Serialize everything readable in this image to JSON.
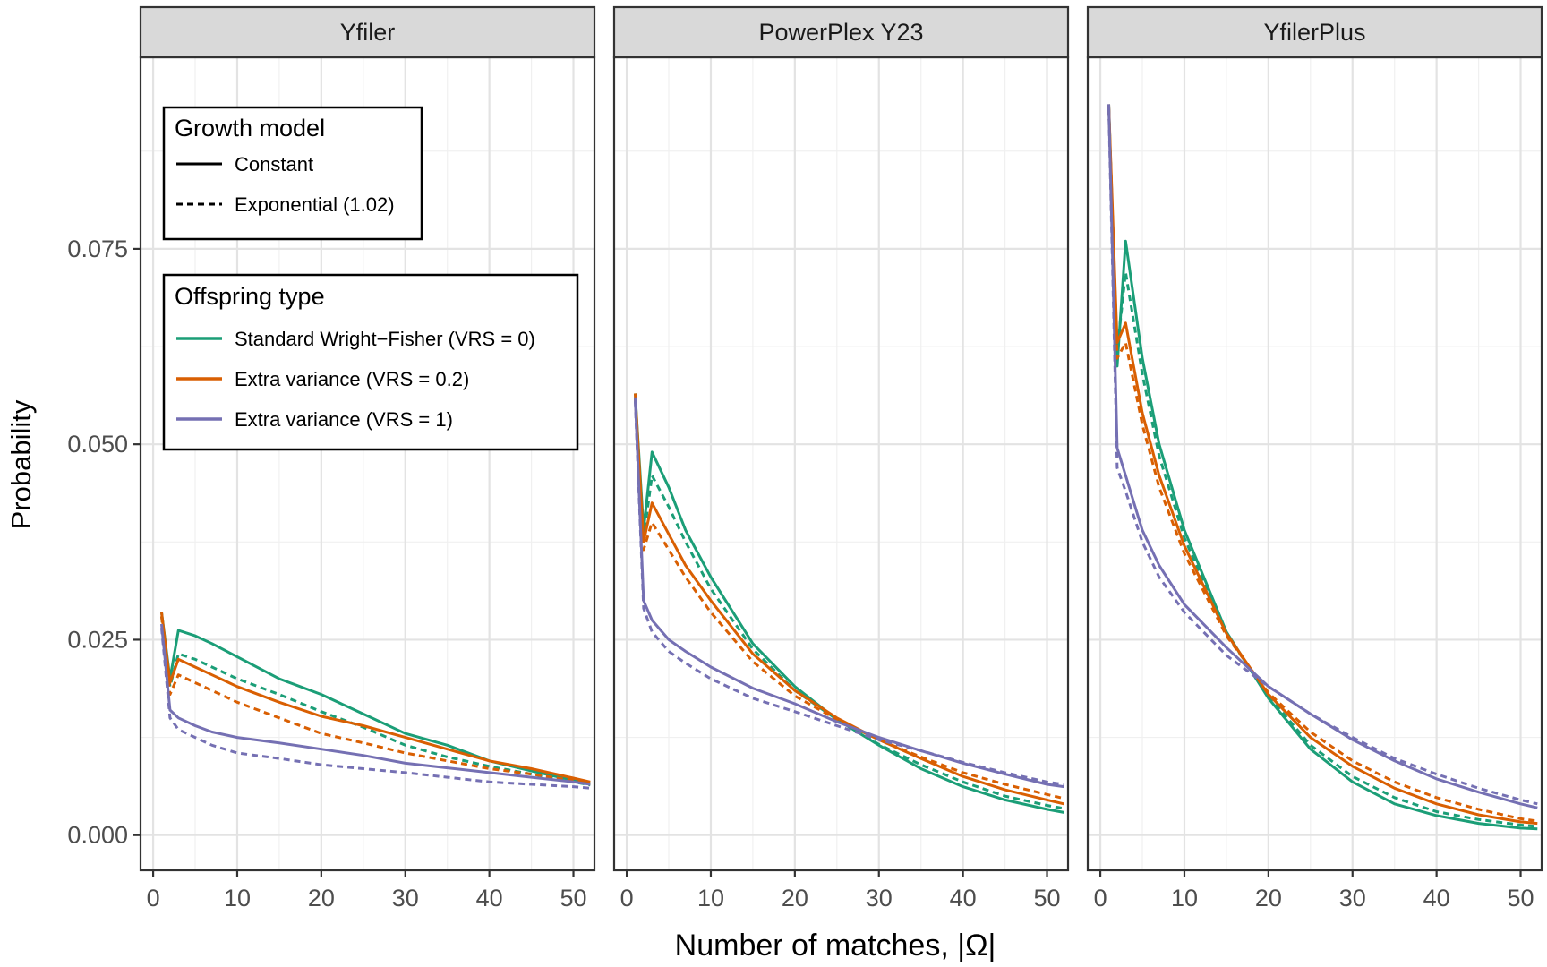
{
  "chart_data": {
    "type": "line",
    "ylabel": "Probability",
    "xlabel": "Number of matches, |Ω|",
    "xlim": [
      -1.5,
      52.5
    ],
    "ylim": [
      -0.0045,
      0.0995
    ],
    "x_ticks": [
      0,
      10,
      20,
      30,
      40,
      50
    ],
    "y_ticks": [
      0.0,
      0.025,
      0.05,
      0.075
    ],
    "y_tick_labels": [
      "0.000",
      "0.025",
      "0.050",
      "0.075"
    ],
    "grid": true,
    "x": [
      1,
      2,
      3,
      5,
      7,
      10,
      15,
      20,
      25,
      30,
      35,
      40,
      45,
      50,
      52
    ],
    "legend": {
      "placement": "top-left inside first panel",
      "growth_model": {
        "title": "Growth model",
        "entries": [
          {
            "label": "Constant",
            "linestyle": "solid"
          },
          {
            "label": "Exponential (1.02)",
            "linestyle": "dashed"
          }
        ]
      },
      "offspring_type": {
        "title": "Offspring type",
        "entries": [
          {
            "label": "Standard Wright−Fisher (VRS = 0)",
            "color": "#1b9e77"
          },
          {
            "label": "Extra variance (VRS = 0.2)",
            "color": "#d95f02"
          },
          {
            "label": "Extra variance (VRS = 1)",
            "color": "#7570b3"
          }
        ]
      }
    },
    "panels": [
      {
        "title": "Yfiler",
        "series": [
          {
            "offspring": "Standard Wright−Fisher (VRS = 0)",
            "growth": "Constant",
            "color": "#1b9e77",
            "dash": false,
            "values": [
              0.0285,
              0.02,
              0.0262,
              0.0255,
              0.0245,
              0.0228,
              0.02,
              0.018,
              0.0155,
              0.013,
              0.0115,
              0.0095,
              0.0082,
              0.007,
              0.0066
            ]
          },
          {
            "offspring": "Standard Wright−Fisher (VRS = 0)",
            "growth": "Exponential (1.02)",
            "color": "#1b9e77",
            "dash": true,
            "values": [
              0.028,
              0.019,
              0.0232,
              0.0225,
              0.0215,
              0.02,
              0.018,
              0.0158,
              0.0138,
              0.0115,
              0.01,
              0.0088,
              0.0078,
              0.0068,
              0.0064
            ]
          },
          {
            "offspring": "Extra variance (VRS = 0.2)",
            "growth": "Constant",
            "color": "#d95f02",
            "dash": false,
            "values": [
              0.0285,
              0.0195,
              0.0225,
              0.0215,
              0.0205,
              0.019,
              0.017,
              0.0152,
              0.014,
              0.0125,
              0.011,
              0.0095,
              0.0085,
              0.0073,
              0.0068
            ]
          },
          {
            "offspring": "Extra variance (VRS = 0.2)",
            "growth": "Exponential (1.02)",
            "color": "#d95f02",
            "dash": true,
            "values": [
              0.028,
              0.018,
              0.0205,
              0.0195,
              0.0185,
              0.017,
              0.015,
              0.013,
              0.0118,
              0.0105,
              0.0095,
              0.0085,
              0.0078,
              0.007,
              0.0065
            ]
          },
          {
            "offspring": "Extra variance (VRS = 1)",
            "growth": "Constant",
            "color": "#7570b3",
            "dash": false,
            "values": [
              0.027,
              0.016,
              0.015,
              0.014,
              0.0132,
              0.0125,
              0.0118,
              0.011,
              0.0102,
              0.0092,
              0.0086,
              0.008,
              0.0074,
              0.0068,
              0.0065
            ]
          },
          {
            "offspring": "Extra variance (VRS = 1)",
            "growth": "Exponential (1.02)",
            "color": "#7570b3",
            "dash": true,
            "values": [
              0.0265,
              0.015,
              0.0135,
              0.0125,
              0.0115,
              0.0105,
              0.0098,
              0.009,
              0.0085,
              0.008,
              0.0074,
              0.0068,
              0.0065,
              0.0062,
              0.006
            ]
          }
        ]
      },
      {
        "title": "PowerPlex Y23",
        "series": [
          {
            "offspring": "Standard Wright−Fisher (VRS = 0)",
            "growth": "Constant",
            "color": "#1b9e77",
            "dash": false,
            "values": [
              0.0565,
              0.039,
              0.049,
              0.0445,
              0.039,
              0.033,
              0.0245,
              0.019,
              0.0148,
              0.0115,
              0.0085,
              0.0062,
              0.0045,
              0.0033,
              0.0029
            ]
          },
          {
            "offspring": "Standard Wright−Fisher (VRS = 0)",
            "growth": "Exponential (1.02)",
            "color": "#1b9e77",
            "dash": true,
            "values": [
              0.056,
              0.038,
              0.046,
              0.042,
              0.0375,
              0.0315,
              0.0238,
              0.0185,
              0.0148,
              0.0116,
              0.009,
              0.0068,
              0.005,
              0.0038,
              0.0034
            ]
          },
          {
            "offspring": "Extra variance (VRS = 0.2)",
            "growth": "Constant",
            "color": "#d95f02",
            "dash": false,
            "values": [
              0.0565,
              0.0375,
              0.0425,
              0.0385,
              0.0345,
              0.03,
              0.0232,
              0.0185,
              0.015,
              0.0122,
              0.0098,
              0.0075,
              0.0058,
              0.0045,
              0.004
            ]
          },
          {
            "offspring": "Extra variance (VRS = 0.2)",
            "growth": "Exponential (1.02)",
            "color": "#d95f02",
            "dash": true,
            "values": [
              0.056,
              0.0365,
              0.04,
              0.0365,
              0.033,
              0.0285,
              0.0222,
              0.0178,
              0.0148,
              0.0122,
              0.01,
              0.008,
              0.0065,
              0.0052,
              0.0047
            ]
          },
          {
            "offspring": "Extra variance (VRS = 1)",
            "growth": "Constant",
            "color": "#7570b3",
            "dash": false,
            "values": [
              0.056,
              0.03,
              0.0275,
              0.025,
              0.0235,
              0.0215,
              0.0188,
              0.0168,
              0.0145,
              0.0125,
              0.0108,
              0.0092,
              0.0078,
              0.0065,
              0.0062
            ]
          },
          {
            "offspring": "Extra variance (VRS = 1)",
            "growth": "Exponential (1.02)",
            "color": "#7570b3",
            "dash": true,
            "values": [
              0.0555,
              0.029,
              0.026,
              0.0235,
              0.022,
              0.02,
              0.0175,
              0.0158,
              0.014,
              0.0122,
              0.0108,
              0.0093,
              0.008,
              0.0068,
              0.0065
            ]
          }
        ]
      },
      {
        "title": "YfilerPlus",
        "series": [
          {
            "offspring": "Standard Wright−Fisher (VRS = 0)",
            "growth": "Constant",
            "color": "#1b9e77",
            "dash": false,
            "values": [
              0.0935,
              0.06,
              0.076,
              0.061,
              0.05,
              0.039,
              0.026,
              0.0175,
              0.011,
              0.0068,
              0.004,
              0.0025,
              0.0015,
              0.0009,
              0.0008
            ]
          },
          {
            "offspring": "Standard Wright−Fisher (VRS = 0)",
            "growth": "Exponential (1.02)",
            "color": "#1b9e77",
            "dash": true,
            "values": [
              0.093,
              0.062,
              0.072,
              0.059,
              0.0485,
              0.038,
              0.0258,
              0.0178,
              0.0115,
              0.0075,
              0.0048,
              0.003,
              0.002,
              0.0013,
              0.0011
            ]
          },
          {
            "offspring": "Extra variance (VRS = 0.2)",
            "growth": "Constant",
            "color": "#d95f02",
            "dash": false,
            "values": [
              0.0935,
              0.063,
              0.0655,
              0.054,
              0.046,
              0.037,
              0.0258,
              0.018,
              0.0125,
              0.0088,
              0.006,
              0.004,
              0.0026,
              0.0017,
              0.0015
            ]
          },
          {
            "offspring": "Extra variance (VRS = 0.2)",
            "growth": "Exponential (1.02)",
            "color": "#d95f02",
            "dash": true,
            "values": [
              0.093,
              0.061,
              0.063,
              0.0525,
              0.0445,
              0.036,
              0.0255,
              0.0182,
              0.0132,
              0.0095,
              0.0068,
              0.0048,
              0.0033,
              0.0021,
              0.0018
            ]
          },
          {
            "offspring": "Extra variance (VRS = 1)",
            "growth": "Constant",
            "color": "#7570b3",
            "dash": false,
            "values": [
              0.0935,
              0.0495,
              0.046,
              0.039,
              0.0345,
              0.0295,
              0.024,
              0.019,
              0.0155,
              0.0122,
              0.0095,
              0.0072,
              0.0055,
              0.004,
              0.0035
            ]
          },
          {
            "offspring": "Extra variance (VRS = 1)",
            "growth": "Exponential (1.02)",
            "color": "#7570b3",
            "dash": true,
            "values": [
              0.093,
              0.047,
              0.044,
              0.0375,
              0.033,
              0.0285,
              0.023,
              0.019,
              0.0155,
              0.0125,
              0.0098,
              0.0078,
              0.006,
              0.0045,
              0.004
            ]
          }
        ]
      }
    ]
  }
}
